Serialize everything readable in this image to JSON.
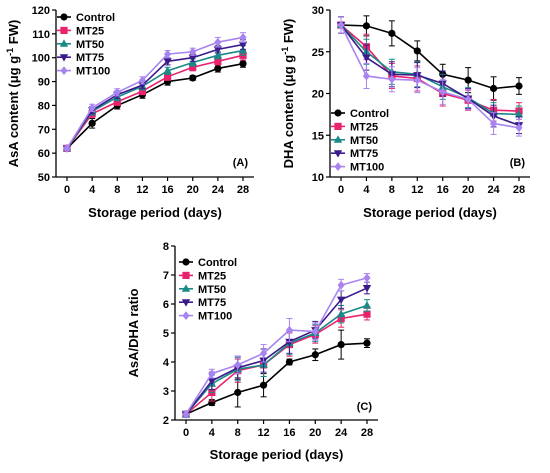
{
  "series_style": [
    {
      "name": "Control",
      "color": "#000000",
      "marker": "circle"
    },
    {
      "name": "MT25",
      "color": "#e8226d",
      "marker": "square"
    },
    {
      "name": "MT50",
      "color": "#1a8a86",
      "marker": "triangle-up"
    },
    {
      "name": "MT75",
      "color": "#3b1b8c",
      "marker": "triangle-down"
    },
    {
      "name": "MT100",
      "color": "#a884f0",
      "marker": "diamond"
    }
  ],
  "chart_data": [
    {
      "type": "line",
      "panel_label": "(A)",
      "xlabel": "Storage period (days)",
      "ylabel": "AsA content (μg g⁻¹ FW)",
      "ylabel_main": "AsA content (μg g",
      "ylabel_sup": "-1",
      "ylabel_tail": " FW)",
      "x": [
        0,
        4,
        8,
        12,
        16,
        20,
        24,
        28
      ],
      "xticks": [
        "0",
        "4",
        "8",
        "12",
        "16",
        "20",
        "24",
        "28"
      ],
      "ylim": [
        50,
        120
      ],
      "yticks": [
        50,
        60,
        70,
        80,
        90,
        100,
        110,
        120
      ],
      "legend_position": "top-left",
      "series": [
        {
          "name": "Control",
          "values": [
            62,
            72.5,
            80,
            84.5,
            90,
            91.5,
            95.5,
            97.5
          ],
          "errors": [
            1,
            2,
            1.5,
            1.5,
            1.5,
            1,
            1.5,
            1.5
          ]
        },
        {
          "name": "MT25",
          "values": [
            62,
            76.5,
            81.5,
            86,
            92,
            96,
            98.5,
            101
          ],
          "errors": [
            1,
            1.5,
            1.5,
            1.5,
            1.5,
            1.5,
            1.5,
            2
          ]
        },
        {
          "name": "MT50",
          "values": [
            62,
            77.5,
            83.5,
            88,
            94.5,
            98,
            101,
            103
          ],
          "errors": [
            1,
            1.5,
            1.5,
            1.5,
            1.5,
            1.5,
            1.5,
            2
          ]
        },
        {
          "name": "MT75",
          "values": [
            62,
            78,
            84.5,
            88.5,
            98.5,
            100,
            103.5,
            105.5
          ],
          "errors": [
            1,
            1.5,
            1.5,
            1.5,
            1.5,
            1.5,
            1.5,
            2
          ]
        },
        {
          "name": "MT100",
          "values": [
            62,
            79,
            85.5,
            90.5,
            101.5,
            102.5,
            106.5,
            108.5
          ],
          "errors": [
            1,
            1.5,
            1.5,
            1.5,
            1.5,
            1.5,
            2,
            2
          ]
        }
      ]
    },
    {
      "type": "line",
      "panel_label": "(B)",
      "xlabel": "Storage period (days)",
      "ylabel": "DHA content (μg g⁻¹ FW)",
      "ylabel_main": "DHA content (μg g",
      "ylabel_sup": "-1",
      "ylabel_tail": " FW)",
      "x": [
        0,
        4,
        8,
        12,
        16,
        20,
        24,
        28
      ],
      "xticks": [
        "0",
        "4",
        "8",
        "12",
        "16",
        "20",
        "24",
        "28"
      ],
      "ylim": [
        10,
        30
      ],
      "yticks": [
        10,
        15,
        20,
        25,
        30
      ],
      "legend_position": "bottom-left",
      "series": [
        {
          "name": "Control",
          "values": [
            28.2,
            28.1,
            27.2,
            25.1,
            22.3,
            21.6,
            20.6,
            20.9
          ],
          "errors": [
            1,
            1.2,
            1.5,
            1.2,
            1.2,
            1.5,
            1.4,
            1
          ]
        },
        {
          "name": "MT25",
          "values": [
            28.2,
            25.6,
            22.1,
            21.8,
            20.0,
            19.2,
            18.0,
            17.9
          ],
          "errors": [
            1,
            1.5,
            1.5,
            1.5,
            1.5,
            1.2,
            1.3,
            1
          ]
        },
        {
          "name": "MT50",
          "values": [
            28.2,
            25.0,
            22.6,
            22.3,
            20.8,
            19.5,
            17.6,
            17.5
          ],
          "errors": [
            1,
            1.5,
            1.5,
            1.5,
            1.5,
            1.2,
            1.3,
            1
          ]
        },
        {
          "name": "MT75",
          "values": [
            28.2,
            24.3,
            22.3,
            22.2,
            21.2,
            19.4,
            17.3,
            16.2
          ],
          "errors": [
            1,
            1.5,
            1.5,
            1.5,
            1.5,
            1.2,
            1.3,
            1
          ]
        },
        {
          "name": "MT100",
          "values": [
            28.2,
            22.1,
            21.7,
            21.6,
            20.2,
            19.3,
            16.4,
            15.9
          ],
          "errors": [
            1,
            1.5,
            1.5,
            1.5,
            1.5,
            1.2,
            1.3,
            1
          ]
        }
      ]
    },
    {
      "type": "line",
      "panel_label": "(C)",
      "xlabel": "Storage period (days)",
      "ylabel": "AsA/DHA ratio",
      "ylabel_main": "AsA/DHA ratio",
      "ylabel_sup": "",
      "ylabel_tail": "",
      "x": [
        0,
        4,
        8,
        12,
        16,
        20,
        24,
        28
      ],
      "xticks": [
        "0",
        "4",
        "8",
        "12",
        "16",
        "20",
        "24",
        "28"
      ],
      "ylim": [
        2,
        8
      ],
      "yticks": [
        2,
        3,
        4,
        5,
        6,
        7,
        8
      ],
      "legend_position": "top-left",
      "series": [
        {
          "name": "Control",
          "values": [
            2.2,
            2.6,
            2.95,
            3.2,
            4.0,
            4.25,
            4.6,
            4.65
          ],
          "errors": [
            0.1,
            0.1,
            0.5,
            0.4,
            0.1,
            0.2,
            0.5,
            0.15
          ]
        },
        {
          "name": "MT25",
          "values": [
            2.2,
            2.95,
            3.7,
            3.9,
            4.6,
            4.95,
            5.5,
            5.65
          ],
          "errors": [
            0.1,
            0.3,
            0.4,
            0.4,
            0.4,
            0.3,
            0.3,
            0.2
          ]
        },
        {
          "name": "MT50",
          "values": [
            2.2,
            3.25,
            3.75,
            3.9,
            4.65,
            5.0,
            5.65,
            5.95
          ],
          "errors": [
            0.1,
            0.3,
            0.4,
            0.4,
            0.4,
            0.3,
            0.3,
            0.2
          ]
        },
        {
          "name": "MT75",
          "values": [
            2.2,
            3.35,
            3.8,
            4.05,
            4.7,
            5.1,
            6.15,
            6.55
          ],
          "errors": [
            0.1,
            0.3,
            0.4,
            0.4,
            0.4,
            0.3,
            0.3,
            0.2
          ]
        },
        {
          "name": "MT100",
          "values": [
            2.2,
            3.6,
            3.9,
            4.3,
            5.1,
            5.05,
            6.65,
            6.9
          ],
          "errors": [
            0.1,
            0.15,
            0.3,
            0.3,
            0.4,
            0.3,
            0.2,
            0.15
          ]
        }
      ]
    }
  ]
}
